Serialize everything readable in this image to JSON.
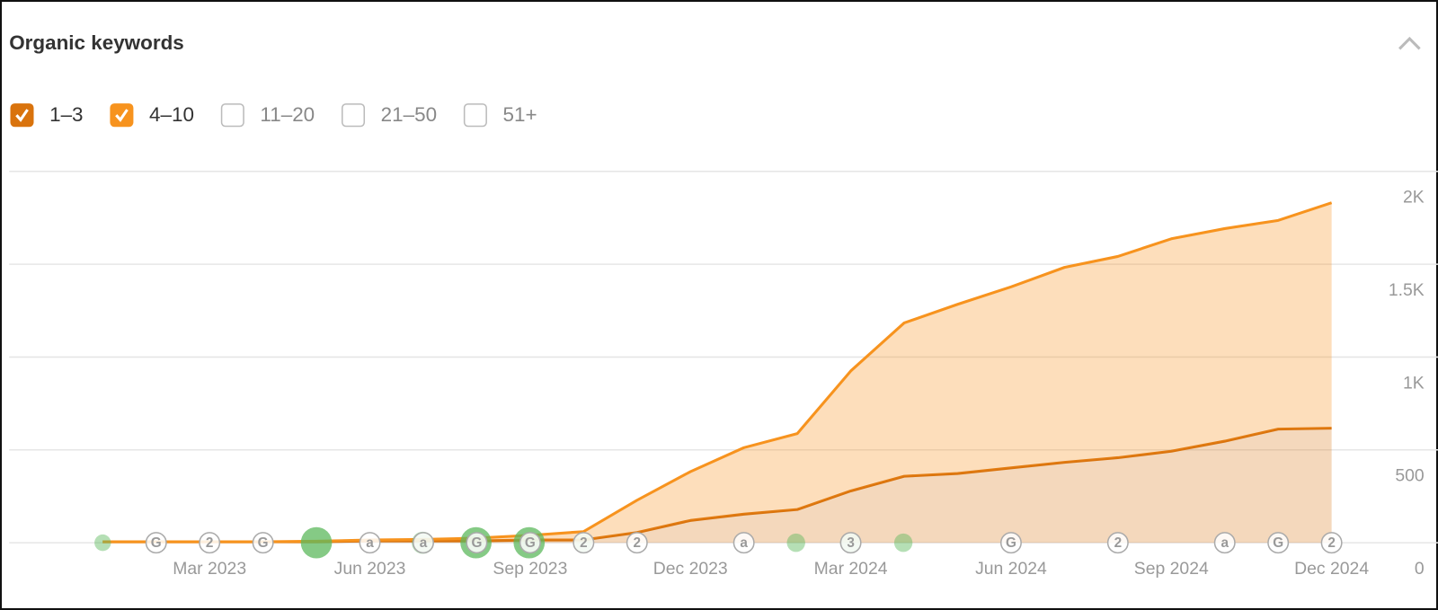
{
  "header": {
    "title": "Organic keywords"
  },
  "chart_data": {
    "type": "stacked_area",
    "x": [
      "2023-01",
      "2023-02",
      "2023-03",
      "2023-04",
      "2023-05",
      "2023-06",
      "2023-07",
      "2023-08",
      "2023-09",
      "2023-10",
      "2023-11",
      "2023-12",
      "2024-01",
      "2024-02",
      "2024-03",
      "2024-04",
      "2024-05",
      "2024-06",
      "2024-07",
      "2024-08",
      "2024-09",
      "2024-10",
      "2024-11",
      "2024-12"
    ],
    "series": [
      {
        "name": "1–3",
        "color": "#d9730d",
        "checked": true,
        "values": [
          5,
          5,
          5,
          5,
          5,
          10,
          10,
          10,
          15,
          15,
          55,
          120,
          154,
          179,
          279,
          358,
          373,
          403,
          433,
          458,
          493,
          547,
          612,
          617
        ]
      },
      {
        "name": "4–10",
        "color": "#f7931e",
        "checked": true,
        "values": [
          0,
          0,
          0,
          0,
          3,
          5,
          8,
          15,
          25,
          45,
          174,
          263,
          358,
          409,
          646,
          826,
          911,
          975,
          1050,
          1084,
          1144,
          1145,
          1124,
          1214
        ]
      }
    ],
    "other_ranges": [
      "11–20",
      "21–50",
      "51+"
    ],
    "ylim": [
      0,
      2000
    ],
    "yticks": [
      0,
      500,
      {
        "value": 1000,
        "label": "1K"
      },
      {
        "value": 1500,
        "label": "1.5K"
      },
      {
        "value": 2000,
        "label": "2K"
      }
    ],
    "xticks": [
      {
        "value": "2023-03",
        "label": "Mar 2023"
      },
      {
        "value": "2023-06",
        "label": "Jun 2023"
      },
      {
        "value": "2023-09",
        "label": "Sep 2023"
      },
      {
        "value": "2023-12",
        "label": "Dec 2023"
      },
      {
        "value": "2024-03",
        "label": "Mar 2024"
      },
      {
        "value": "2024-06",
        "label": "Jun 2024"
      },
      {
        "value": "2024-09",
        "label": "Sep 2024"
      },
      {
        "value": "2024-12",
        "label": "Dec 2024"
      }
    ],
    "grid": true,
    "annotations": [
      {
        "x": "2023-02",
        "label": "G"
      },
      {
        "x": "2023-03",
        "label": "2"
      },
      {
        "x": "2023-04",
        "label": "G"
      },
      {
        "x": "2023-06",
        "label": "a"
      },
      {
        "x": "2023-07",
        "label": "a"
      },
      {
        "x": "2023-08",
        "label": "G"
      },
      {
        "x": "2023-09",
        "label": "G"
      },
      {
        "x": "2023-10",
        "label": "2"
      },
      {
        "x": "2023-11",
        "label": "2"
      },
      {
        "x": "2024-01",
        "label": "a"
      },
      {
        "x": "2024-03",
        "label": "3"
      },
      {
        "x": "2024-06",
        "label": "G"
      },
      {
        "x": "2024-08",
        "label": "2"
      },
      {
        "x": "2024-10",
        "label": "a"
      },
      {
        "x": "2024-11",
        "label": "G"
      },
      {
        "x": "2024-12",
        "label": "2"
      }
    ]
  }
}
